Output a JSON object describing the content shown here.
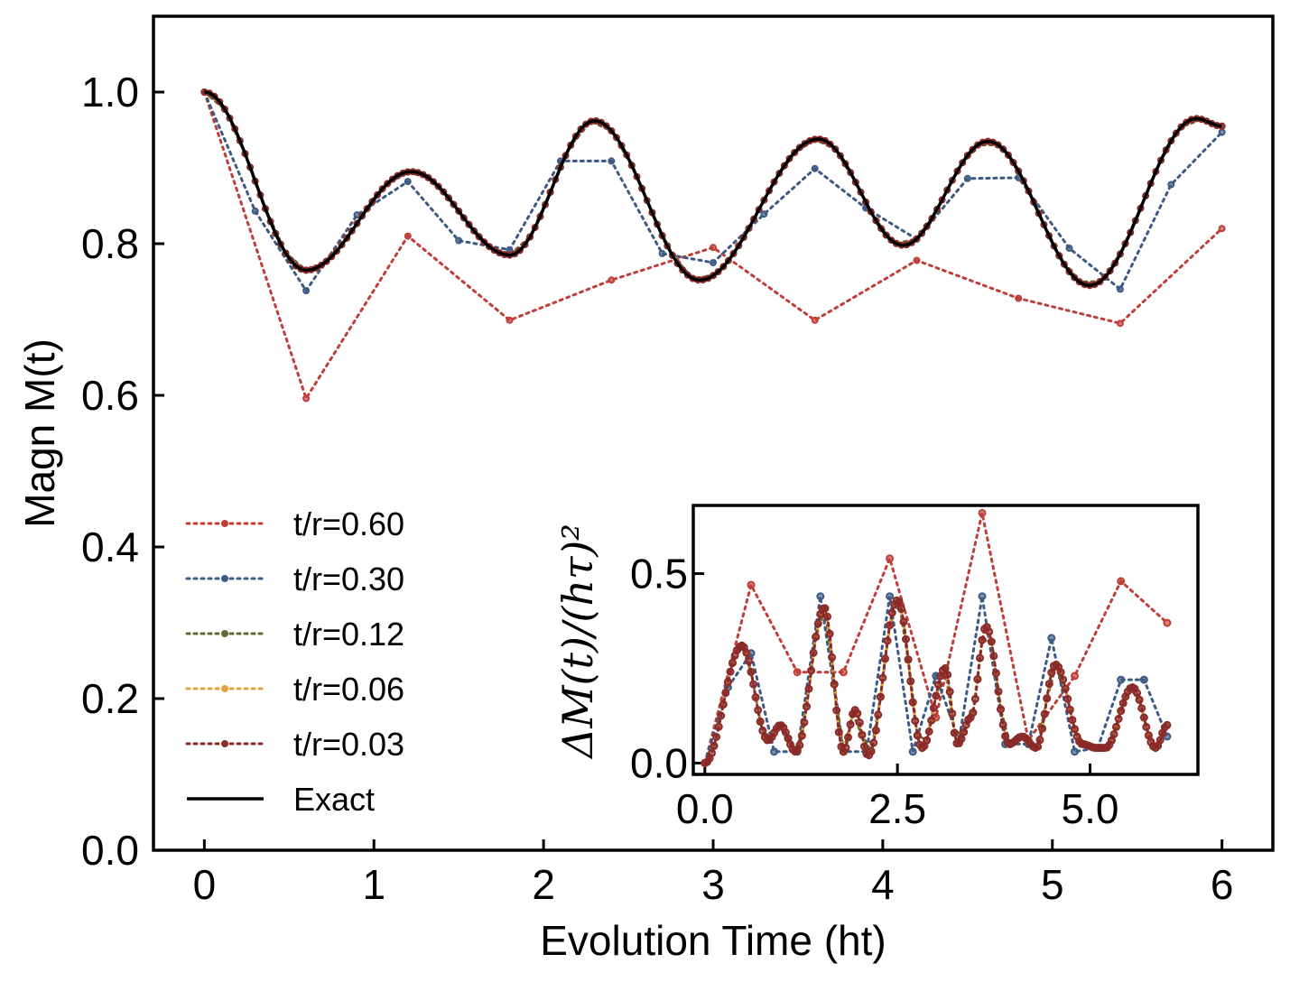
{
  "chart_data": [
    {
      "id": "main",
      "type": "line",
      "xlabel": "Evolution Time (ht)",
      "ylabel": "Magn M(t)",
      "xlim": [
        -0.3,
        6.3
      ],
      "ylim": [
        0.0,
        1.1
      ],
      "xticks": [
        0,
        1,
        2,
        3,
        4,
        5,
        6
      ],
      "xtick_labels": [
        "0",
        "1",
        "2",
        "3",
        "4",
        "5",
        "6"
      ],
      "yticks": [
        0.0,
        0.2,
        0.4,
        0.6,
        0.8,
        1.0
      ],
      "ytick_labels": [
        "0.0",
        "0.2",
        "0.4",
        "0.6",
        "0.8",
        "1.0"
      ],
      "legend_position": "lower-left",
      "exact_model": {
        "description": "Exact",
        "x_range": [
          0,
          6
        ],
        "peaks": [
          [
            0,
            1.0
          ],
          [
            0.6,
            0.765
          ],
          [
            1.22,
            0.895
          ],
          [
            1.8,
            0.785
          ],
          [
            2.3,
            0.962
          ],
          [
            2.92,
            0.752
          ],
          [
            3.62,
            0.938
          ],
          [
            4.12,
            0.798
          ],
          [
            4.62,
            0.935
          ],
          [
            5.22,
            0.745
          ],
          [
            5.85,
            0.965
          ],
          [
            6.0,
            0.955
          ]
        ]
      },
      "series": [
        {
          "name": "t/r=0.60",
          "color": "#bf3f38",
          "x": [
            0,
            0.6,
            1.2,
            1.8,
            2.4,
            3.0,
            3.6,
            4.2,
            4.8,
            5.4,
            6.0
          ],
          "y": [
            1.0,
            0.596,
            0.81,
            0.699,
            0.752,
            0.795,
            0.699,
            0.778,
            0.728,
            0.695,
            0.82
          ]
        },
        {
          "name": "t/r=0.30",
          "color": "#3c5a84",
          "x": [
            0,
            0.3,
            0.6,
            0.9,
            1.2,
            1.5,
            1.8,
            2.1,
            2.4,
            2.7,
            3.0,
            3.3,
            3.6,
            3.9,
            4.2,
            4.5,
            4.8,
            5.1,
            5.4,
            5.7,
            6.0
          ],
          "y": [
            1.0,
            0.843,
            0.738,
            0.838,
            0.882,
            0.804,
            0.792,
            0.909,
            0.909,
            0.787,
            0.775,
            0.839,
            0.899,
            0.847,
            0.806,
            0.886,
            0.887,
            0.794,
            0.74,
            0.878,
            0.947
          ]
        },
        {
          "name": "t/r=0.12",
          "color": "#5f6b35",
          "step": 0.12,
          "follows": "exact"
        },
        {
          "name": "t/r=0.06",
          "color": "#e3a33a",
          "step": 0.06,
          "follows": "exact"
        },
        {
          "name": "t/r=0.03",
          "color": "#8b2a2a",
          "step": 0.03,
          "follows": "exact"
        },
        {
          "name": "Exact",
          "color": "#000000",
          "style": "solid"
        }
      ]
    },
    {
      "id": "inset",
      "type": "line",
      "xlabel": "",
      "ylabel": "ΔM(t)/(hτ)²",
      "xlim": [
        -0.15,
        6.4
      ],
      "ylim": [
        -0.03,
        0.68
      ],
      "xticks": [
        0.0,
        2.5,
        5.0
      ],
      "xtick_labels": [
        "0.0",
        "2.5",
        "5.0"
      ],
      "yticks": [
        0.0,
        0.5
      ],
      "ytick_labels": [
        "0.0",
        "0.5"
      ],
      "error_model": {
        "x_range": [
          0,
          6
        ],
        "peaks": [
          [
            0,
            0.0
          ],
          [
            0.48,
            0.31
          ],
          [
            0.82,
            0.06
          ],
          [
            0.98,
            0.1
          ],
          [
            1.18,
            0.03
          ],
          [
            1.55,
            0.41
          ],
          [
            1.8,
            0.03
          ],
          [
            1.95,
            0.14
          ],
          [
            2.12,
            0.02
          ],
          [
            2.5,
            0.43
          ],
          [
            2.82,
            0.04
          ],
          [
            3.12,
            0.25
          ],
          [
            3.28,
            0.05
          ],
          [
            3.45,
            0.12
          ],
          [
            3.65,
            0.36
          ],
          [
            3.95,
            0.05
          ],
          [
            4.12,
            0.07
          ],
          [
            4.3,
            0.04
          ],
          [
            4.55,
            0.26
          ],
          [
            4.9,
            0.05
          ],
          [
            5.08,
            0.04
          ],
          [
            5.2,
            0.04
          ],
          [
            5.55,
            0.2
          ],
          [
            5.85,
            0.04
          ],
          [
            6.0,
            0.1
          ]
        ]
      },
      "series": [
        {
          "name": "t/r=0.60",
          "color": "#bf3f38",
          "x": [
            0,
            0.6,
            1.2,
            1.8,
            2.4,
            3.0,
            3.6,
            4.2,
            4.8,
            5.4,
            6.0
          ],
          "y": [
            0.0,
            0.47,
            0.24,
            0.24,
            0.54,
            0.12,
            0.66,
            0.06,
            0.23,
            0.48,
            0.37
          ]
        },
        {
          "name": "t/r=0.30",
          "color": "#3c5a84",
          "x": [
            0,
            0.3,
            0.6,
            0.9,
            1.2,
            1.5,
            1.8,
            2.1,
            2.4,
            2.7,
            3.0,
            3.3,
            3.6,
            3.9,
            4.2,
            4.5,
            4.8,
            5.1,
            5.4,
            5.7,
            6.0
          ],
          "y": [
            0.0,
            0.2,
            0.29,
            0.03,
            0.03,
            0.44,
            0.03,
            0.03,
            0.44,
            0.03,
            0.23,
            0.06,
            0.44,
            0.05,
            0.05,
            0.33,
            0.03,
            0.04,
            0.22,
            0.22,
            0.07
          ]
        },
        {
          "name": "t/r=0.12",
          "color": "#5f6b35",
          "step": 0.12,
          "follows": "error"
        },
        {
          "name": "t/r=0.06",
          "color": "#e3a33a",
          "step": 0.06,
          "follows": "error"
        },
        {
          "name": "t/r=0.03",
          "color": "#8b2a2a",
          "step": 0.03,
          "follows": "error"
        }
      ]
    }
  ]
}
